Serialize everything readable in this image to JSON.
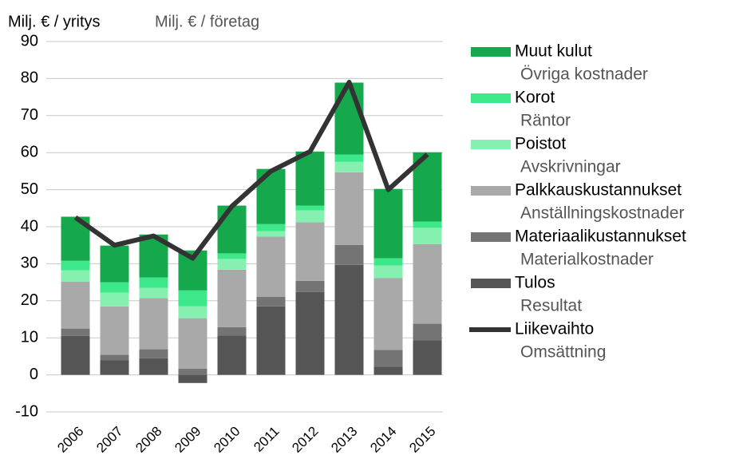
{
  "chart_data": {
    "type": "bar",
    "stacked": true,
    "title": "Milj. € / yritys",
    "subtitle": "Milj. € / företag",
    "categories": [
      "2006",
      "2007",
      "2008",
      "2009",
      "2010",
      "2011",
      "2012",
      "2013",
      "2014",
      "2015"
    ],
    "ylim": [
      -10,
      90
    ],
    "yticks": [
      -10,
      0,
      10,
      20,
      30,
      40,
      50,
      60,
      70,
      80,
      90
    ],
    "grid": true,
    "legend": "right",
    "series": [
      {
        "name": "Tulos",
        "name_sv": "Resultat",
        "color": "#555555",
        "values": [
          10.5,
          3.9,
          4.5,
          -2.2,
          10.6,
          18.5,
          22.4,
          29.7,
          2.2,
          9.3
        ]
      },
      {
        "name": "Materiaalikustannukset",
        "name_sv": "Materialkostnader",
        "color": "#747474",
        "values": [
          2.0,
          1.5,
          2.4,
          1.7,
          2.3,
          2.6,
          3.0,
          5.4,
          4.5,
          4.5
        ]
      },
      {
        "name": "Palkkauskustannukset",
        "name_sv": "Anställningskostnader",
        "color": "#a9a9a9",
        "values": [
          12.7,
          13.1,
          13.8,
          13.6,
          15.5,
          16.2,
          15.8,
          19.6,
          19.4,
          21.5
        ]
      },
      {
        "name": "Poistot",
        "name_sv": "Avskrivningar",
        "color": "#86f0b0",
        "values": [
          3.0,
          3.7,
          2.8,
          3.2,
          2.9,
          1.5,
          3.2,
          2.8,
          3.4,
          4.4
        ]
      },
      {
        "name": "Korot",
        "name_sv": "Räntor",
        "color": "#3de88a",
        "values": [
          2.6,
          2.8,
          2.8,
          4.3,
          1.5,
          1.9,
          1.3,
          2.0,
          2.0,
          1.7
        ]
      },
      {
        "name": "Muut kulut",
        "name_sv": "Övriga kostnader",
        "color": "#16a84c",
        "values": [
          11.9,
          9.9,
          11.6,
          10.8,
          12.9,
          14.9,
          14.6,
          19.4,
          18.7,
          18.7
        ]
      },
      {
        "name": "Liikevaihto",
        "name_sv": "Omsättning",
        "type": "line",
        "color": "#333333",
        "values": [
          42.5,
          35.0,
          37.5,
          31.5,
          45.5,
          55.0,
          60.3,
          79.0,
          50.0,
          59.5
        ]
      }
    ]
  }
}
